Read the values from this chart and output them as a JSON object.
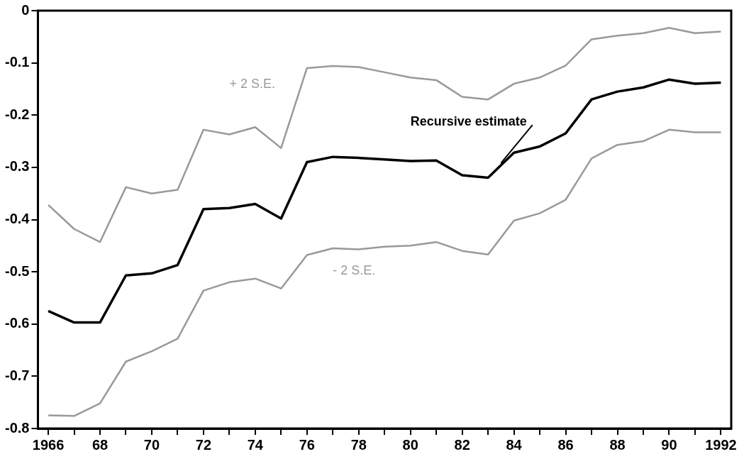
{
  "chart_data": {
    "type": "line",
    "x": [
      1966,
      1967,
      1968,
      1969,
      1970,
      1971,
      1972,
      1973,
      1974,
      1975,
      1976,
      1977,
      1978,
      1979,
      1980,
      1981,
      1982,
      1983,
      1984,
      1985,
      1986,
      1987,
      1988,
      1989,
      1990,
      1991,
      1992
    ],
    "series": [
      {
        "name": "+ 2 S.E.",
        "color": "#999999",
        "values": [
          -0.372,
          -0.418,
          -0.443,
          -0.338,
          -0.35,
          -0.343,
          -0.228,
          -0.237,
          -0.223,
          -0.263,
          -0.11,
          -0.106,
          -0.108,
          -0.118,
          -0.128,
          -0.133,
          -0.165,
          -0.17,
          -0.14,
          -0.128,
          -0.105,
          -0.055,
          -0.048,
          -0.043,
          -0.033,
          -0.043,
          -0.04
        ]
      },
      {
        "name": "Recursive estimate",
        "color": "#000000",
        "values": [
          -0.575,
          -0.597,
          -0.597,
          -0.507,
          -0.503,
          -0.487,
          -0.38,
          -0.378,
          -0.37,
          -0.398,
          -0.29,
          -0.28,
          -0.282,
          -0.285,
          -0.288,
          -0.287,
          -0.315,
          -0.32,
          -0.272,
          -0.26,
          -0.235,
          -0.17,
          -0.155,
          -0.147,
          -0.132,
          -0.14,
          -0.138
        ]
      },
      {
        "name": "- 2 S.E.",
        "color": "#999999",
        "values": [
          -0.775,
          -0.776,
          -0.752,
          -0.672,
          -0.652,
          -0.628,
          -0.536,
          -0.52,
          -0.513,
          -0.532,
          -0.468,
          -0.455,
          -0.457,
          -0.452,
          -0.45,
          -0.443,
          -0.46,
          -0.467,
          -0.402,
          -0.388,
          -0.362,
          -0.283,
          -0.257,
          -0.25,
          -0.228,
          -0.233,
          -0.233
        ]
      }
    ],
    "xlim": [
      1965.6,
      1992.4
    ],
    "xticks": [
      {
        "value": 1966,
        "label": "1966"
      },
      {
        "value": 1967,
        "label": null
      },
      {
        "value": 1968,
        "label": "68"
      },
      {
        "value": 1969,
        "label": null
      },
      {
        "value": 1970,
        "label": "70"
      },
      {
        "value": 1971,
        "label": null
      },
      {
        "value": 1972,
        "label": "72"
      },
      {
        "value": 1973,
        "label": null
      },
      {
        "value": 1974,
        "label": "74"
      },
      {
        "value": 1975,
        "label": null
      },
      {
        "value": 1976,
        "label": "76"
      },
      {
        "value": 1977,
        "label": null
      },
      {
        "value": 1978,
        "label": "78"
      },
      {
        "value": 1979,
        "label": null
      },
      {
        "value": 1980,
        "label": "80"
      },
      {
        "value": 1981,
        "label": null
      },
      {
        "value": 1982,
        "label": "82"
      },
      {
        "value": 1983,
        "label": null
      },
      {
        "value": 1984,
        "label": "84"
      },
      {
        "value": 1985,
        "label": null
      },
      {
        "value": 1986,
        "label": "86"
      },
      {
        "value": 1987,
        "label": null
      },
      {
        "value": 1988,
        "label": "88"
      },
      {
        "value": 1989,
        "label": null
      },
      {
        "value": 1990,
        "label": "90"
      },
      {
        "value": 1991,
        "label": null
      },
      {
        "value": 1992,
        "label": "1992"
      }
    ],
    "ylim": [
      -0.8,
      0
    ],
    "yticks": [
      -0.8,
      -0.7,
      -0.6,
      -0.5,
      -0.4,
      -0.3,
      -0.2,
      -0.1,
      0
    ],
    "grid": false,
    "legend": false,
    "marker": "none",
    "line_style": "solid"
  }
}
